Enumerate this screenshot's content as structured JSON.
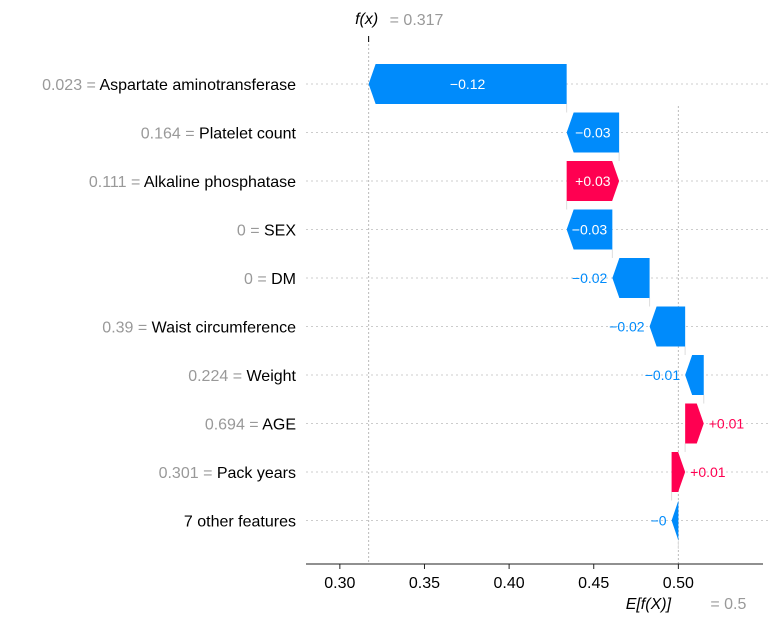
{
  "chart_data": {
    "type": "waterfall",
    "fx_label": "f(x)",
    "fx_value": "= 0.317",
    "fx": 0.317,
    "base_label": "E[f(X)]",
    "base_value_text": "= 0.5",
    "base_value": 0.5,
    "xlim": [
      0.28,
      0.55
    ],
    "xticks": [
      0.3,
      0.35,
      0.4,
      0.45,
      0.5
    ],
    "xtick_labels": [
      "0.30",
      "0.35",
      "0.40",
      "0.45",
      "0.50"
    ],
    "colors": {
      "positive": "#ff0051",
      "negative": "#008bfb",
      "grid": "#cccccc"
    },
    "features": [
      {
        "value_text": "0.023 =",
        "name": "Aspartate aminotransferase",
        "start": 0.434,
        "end": 0.317,
        "label": "−0.12"
      },
      {
        "value_text": "0.164 =",
        "name": "Platelet count",
        "start": 0.465,
        "end": 0.434,
        "label": "−0.03"
      },
      {
        "value_text": "0.111 =",
        "name": "Alkaline phosphatase",
        "start": 0.434,
        "end": 0.465,
        "label": "+0.03"
      },
      {
        "value_text": "0 =",
        "name": "SEX",
        "start": 0.461,
        "end": 0.434,
        "label": "−0.03"
      },
      {
        "value_text": "0 =",
        "name": "DM",
        "start": 0.483,
        "end": 0.461,
        "label": "−0.02"
      },
      {
        "value_text": "0.39 =",
        "name": "Waist circumference",
        "start": 0.504,
        "end": 0.483,
        "label": "−0.02"
      },
      {
        "value_text": "0.224 =",
        "name": "Weight",
        "start": 0.515,
        "end": 0.504,
        "label": "−0.01"
      },
      {
        "value_text": "0.694 =",
        "name": "AGE",
        "start": 0.504,
        "end": 0.515,
        "label": "+0.01"
      },
      {
        "value_text": "0.301 =",
        "name": "Pack years",
        "start": 0.496,
        "end": 0.504,
        "label": "+0.01"
      },
      {
        "value_text": "",
        "name": "7 other features",
        "start": 0.5,
        "end": 0.496,
        "label": "−0"
      }
    ]
  }
}
